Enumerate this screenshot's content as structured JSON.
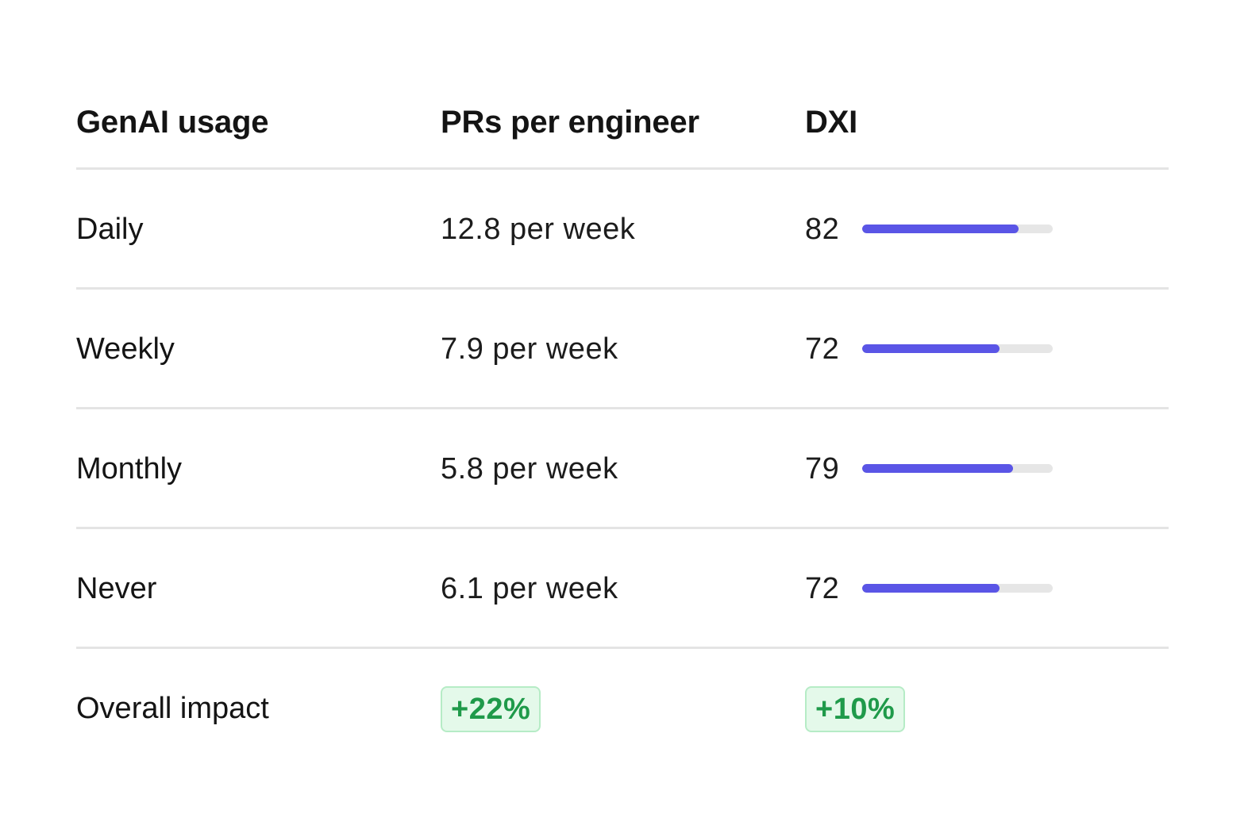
{
  "table": {
    "headers": {
      "usage": "GenAI usage",
      "prs": "PRs per engineer",
      "dxi": "DXI"
    },
    "rows": [
      {
        "label": "Daily",
        "prs": "12.8 per week",
        "dxi": "82",
        "dxi_value": 82
      },
      {
        "label": "Weekly",
        "prs": "7.9 per week",
        "dxi": "72",
        "dxi_value": 72
      },
      {
        "label": "Monthly",
        "prs": "5.8 per week",
        "dxi": "79",
        "dxi_value": 79
      },
      {
        "label": "Never",
        "prs": "6.1 per week",
        "dxi": "72",
        "dxi_value": 72
      }
    ],
    "summary": {
      "label": "Overall impact",
      "prs_change": "+22%",
      "dxi_change": "+10%"
    }
  },
  "colors": {
    "bar_fill": "#5a55e6",
    "bar_track": "#e6e6e6",
    "badge_text": "#1f9a4a",
    "badge_bg": "#e4f9ea",
    "badge_border": "#b6ecc6",
    "divider": "#e4e4e4"
  }
}
